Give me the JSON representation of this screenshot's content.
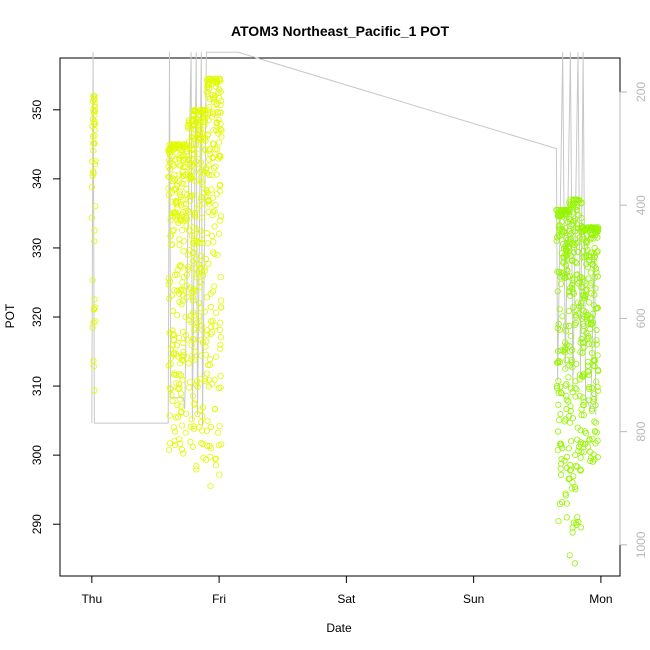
{
  "chart_data": {
    "type": "scatter",
    "title": "ATOM3 Northeast_Pacific_1 POT",
    "xlabel": "Date",
    "ylabel": "POT",
    "x_ticks": [
      {
        "label": "Thu",
        "value": 0
      },
      {
        "label": "Fri",
        "value": 1
      },
      {
        "label": "Sat",
        "value": 2
      },
      {
        "label": "Sun",
        "value": 3
      },
      {
        "label": "Mon",
        "value": 4
      }
    ],
    "xlim": [
      -0.25,
      4.15
    ],
    "ylim": [
      282.5,
      357.5
    ],
    "y_ticks": [
      290,
      300,
      310,
      320,
      330,
      340,
      350
    ],
    "y2_ticks": [
      200,
      400,
      600,
      800,
      1000
    ],
    "y2lim": [
      1055,
      140
    ],
    "y2_reversed": true,
    "grid": false,
    "colors": {
      "day1_points": "#e1fa00",
      "day4_points": "#96f500",
      "pressure_line": "#c8c8c8",
      "axis": "#000000",
      "right_axis": "#b8b8b8"
    },
    "series": [
      {
        "color": "day1_points",
        "segments": [
          {
            "x": [
              0.0,
              0.03
            ],
            "ymin": 309.0,
            "ymax": 352.0
          },
          {
            "x": [
              0.6,
              0.75
            ],
            "ymin": 300.0,
            "ymax": 345.0
          },
          {
            "x": [
              0.75,
              0.8
            ],
            "ymin": 301.0,
            "ymax": 348.5
          },
          {
            "x": [
              0.8,
              0.9
            ],
            "ymin": 295.0,
            "ymax": 350.0
          },
          {
            "x": [
              0.9,
              1.02
            ],
            "ymin": 295.0,
            "ymax": 354.5
          }
        ]
      },
      {
        "color": "day4_points",
        "segments": [
          {
            "x": [
              3.65,
              3.75
            ],
            "ymin": 290.0,
            "ymax": 335.5
          },
          {
            "x": [
              3.75,
              3.85
            ],
            "ymin": 284.0,
            "ymax": 337.0
          },
          {
            "x": [
              3.85,
              3.98
            ],
            "ymin": 299.0,
            "ymax": 333.0
          }
        ]
      }
    ],
    "pressure_trace": {
      "points": [
        [
          0.0,
          785
        ],
        [
          0.01,
          130
        ],
        [
          0.02,
          785
        ],
        [
          0.6,
          785
        ],
        [
          0.61,
          130
        ],
        [
          0.62,
          740
        ],
        [
          0.72,
          740
        ],
        [
          0.73,
          760
        ],
        [
          0.78,
          130
        ],
        [
          0.79,
          780
        ],
        [
          0.82,
          130
        ],
        [
          0.83,
          770
        ],
        [
          0.86,
          130
        ],
        [
          0.87,
          790
        ],
        [
          0.9,
          130
        ],
        [
          0.92,
          130
        ],
        [
          1.15,
          130
        ],
        [
          3.65,
          300
        ],
        [
          3.66,
          710
        ],
        [
          3.7,
          130
        ],
        [
          3.72,
          690
        ],
        [
          3.76,
          130
        ],
        [
          3.78,
          720
        ],
        [
          3.82,
          130
        ],
        [
          3.84,
          700
        ],
        [
          3.86,
          130
        ],
        [
          3.88,
          740
        ],
        [
          3.92,
          760
        ],
        [
          3.95,
          480
        ],
        [
          3.96,
          770
        ]
      ]
    }
  }
}
